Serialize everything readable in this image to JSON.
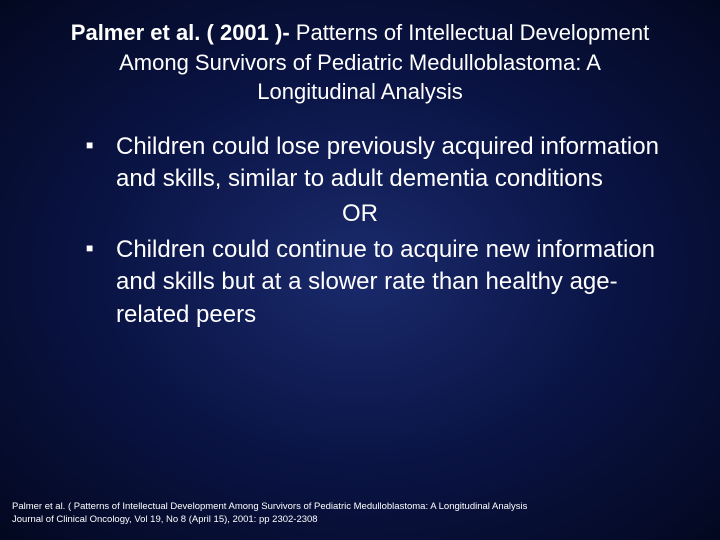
{
  "slide": {
    "title_bold": "Palmer et al. ( 2001 )- ",
    "title_rest": "Patterns of Intellectual Development Among Survivors of Pediatric Medulloblastoma: A Longitudinal Analysis",
    "bullet1": "Children could lose previously acquired information and skills, similar to adult dementia conditions",
    "or_label": "OR",
    "bullet2": "Children could continue to acquire new information and skills but at a slower rate than healthy age-related peers",
    "citation_line1": "Palmer et al. ( Patterns of Intellectual Development Among Survivors of Pediatric Medulloblastoma: A Longitudinal Analysis",
    "citation_line2": "Journal of Clinical Oncology, Vol 19, No 8 (April 15), 2001: pp 2302-2308"
  },
  "style": {
    "background_gradient": [
      "#1a2a6c",
      "#0a1445",
      "#030820"
    ],
    "text_color": "#ffffff",
    "title_fontsize": 22,
    "body_fontsize": 24,
    "citation_fontsize": 9.5,
    "font_family": "Verdana, Arial, sans-serif",
    "bullet_marker": "■"
  }
}
